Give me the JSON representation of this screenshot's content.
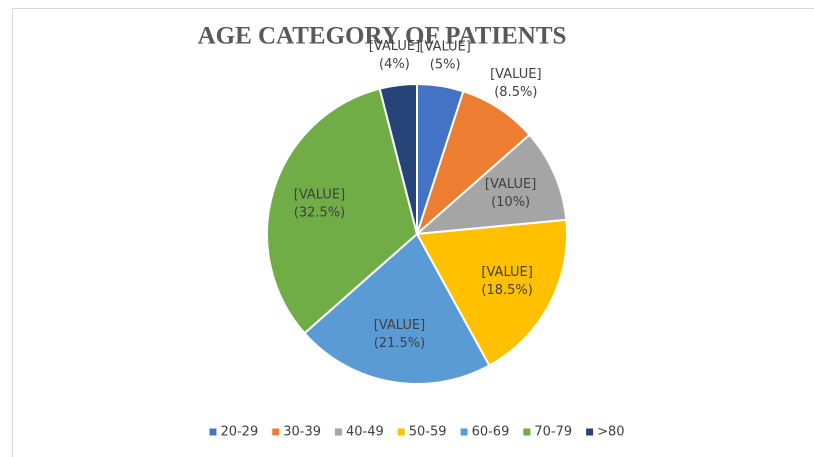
{
  "chart_data": {
    "type": "pie",
    "title": "AGE CATEGORY OF PATIENTS",
    "categories": [
      "20-29",
      "30-39",
      "40-49",
      "50-59",
      "60-69",
      "70-79",
      ">80"
    ],
    "values": [
      5,
      8.5,
      10,
      18.5,
      21.5,
      32.5,
      4
    ],
    "value_labels": [
      "(5%)",
      "(8.5%)",
      "(10%)",
      "(18.5%)",
      "(21.5%)",
      "(32.5%)",
      "(4%)"
    ],
    "label_text": "[VALUE]",
    "colors": [
      "#4472c4",
      "#ed7d31",
      "#a5a5a5",
      "#ffc000",
      "#5b9bd5",
      "#70ad47",
      "#264478"
    ],
    "legend": "bottom"
  }
}
